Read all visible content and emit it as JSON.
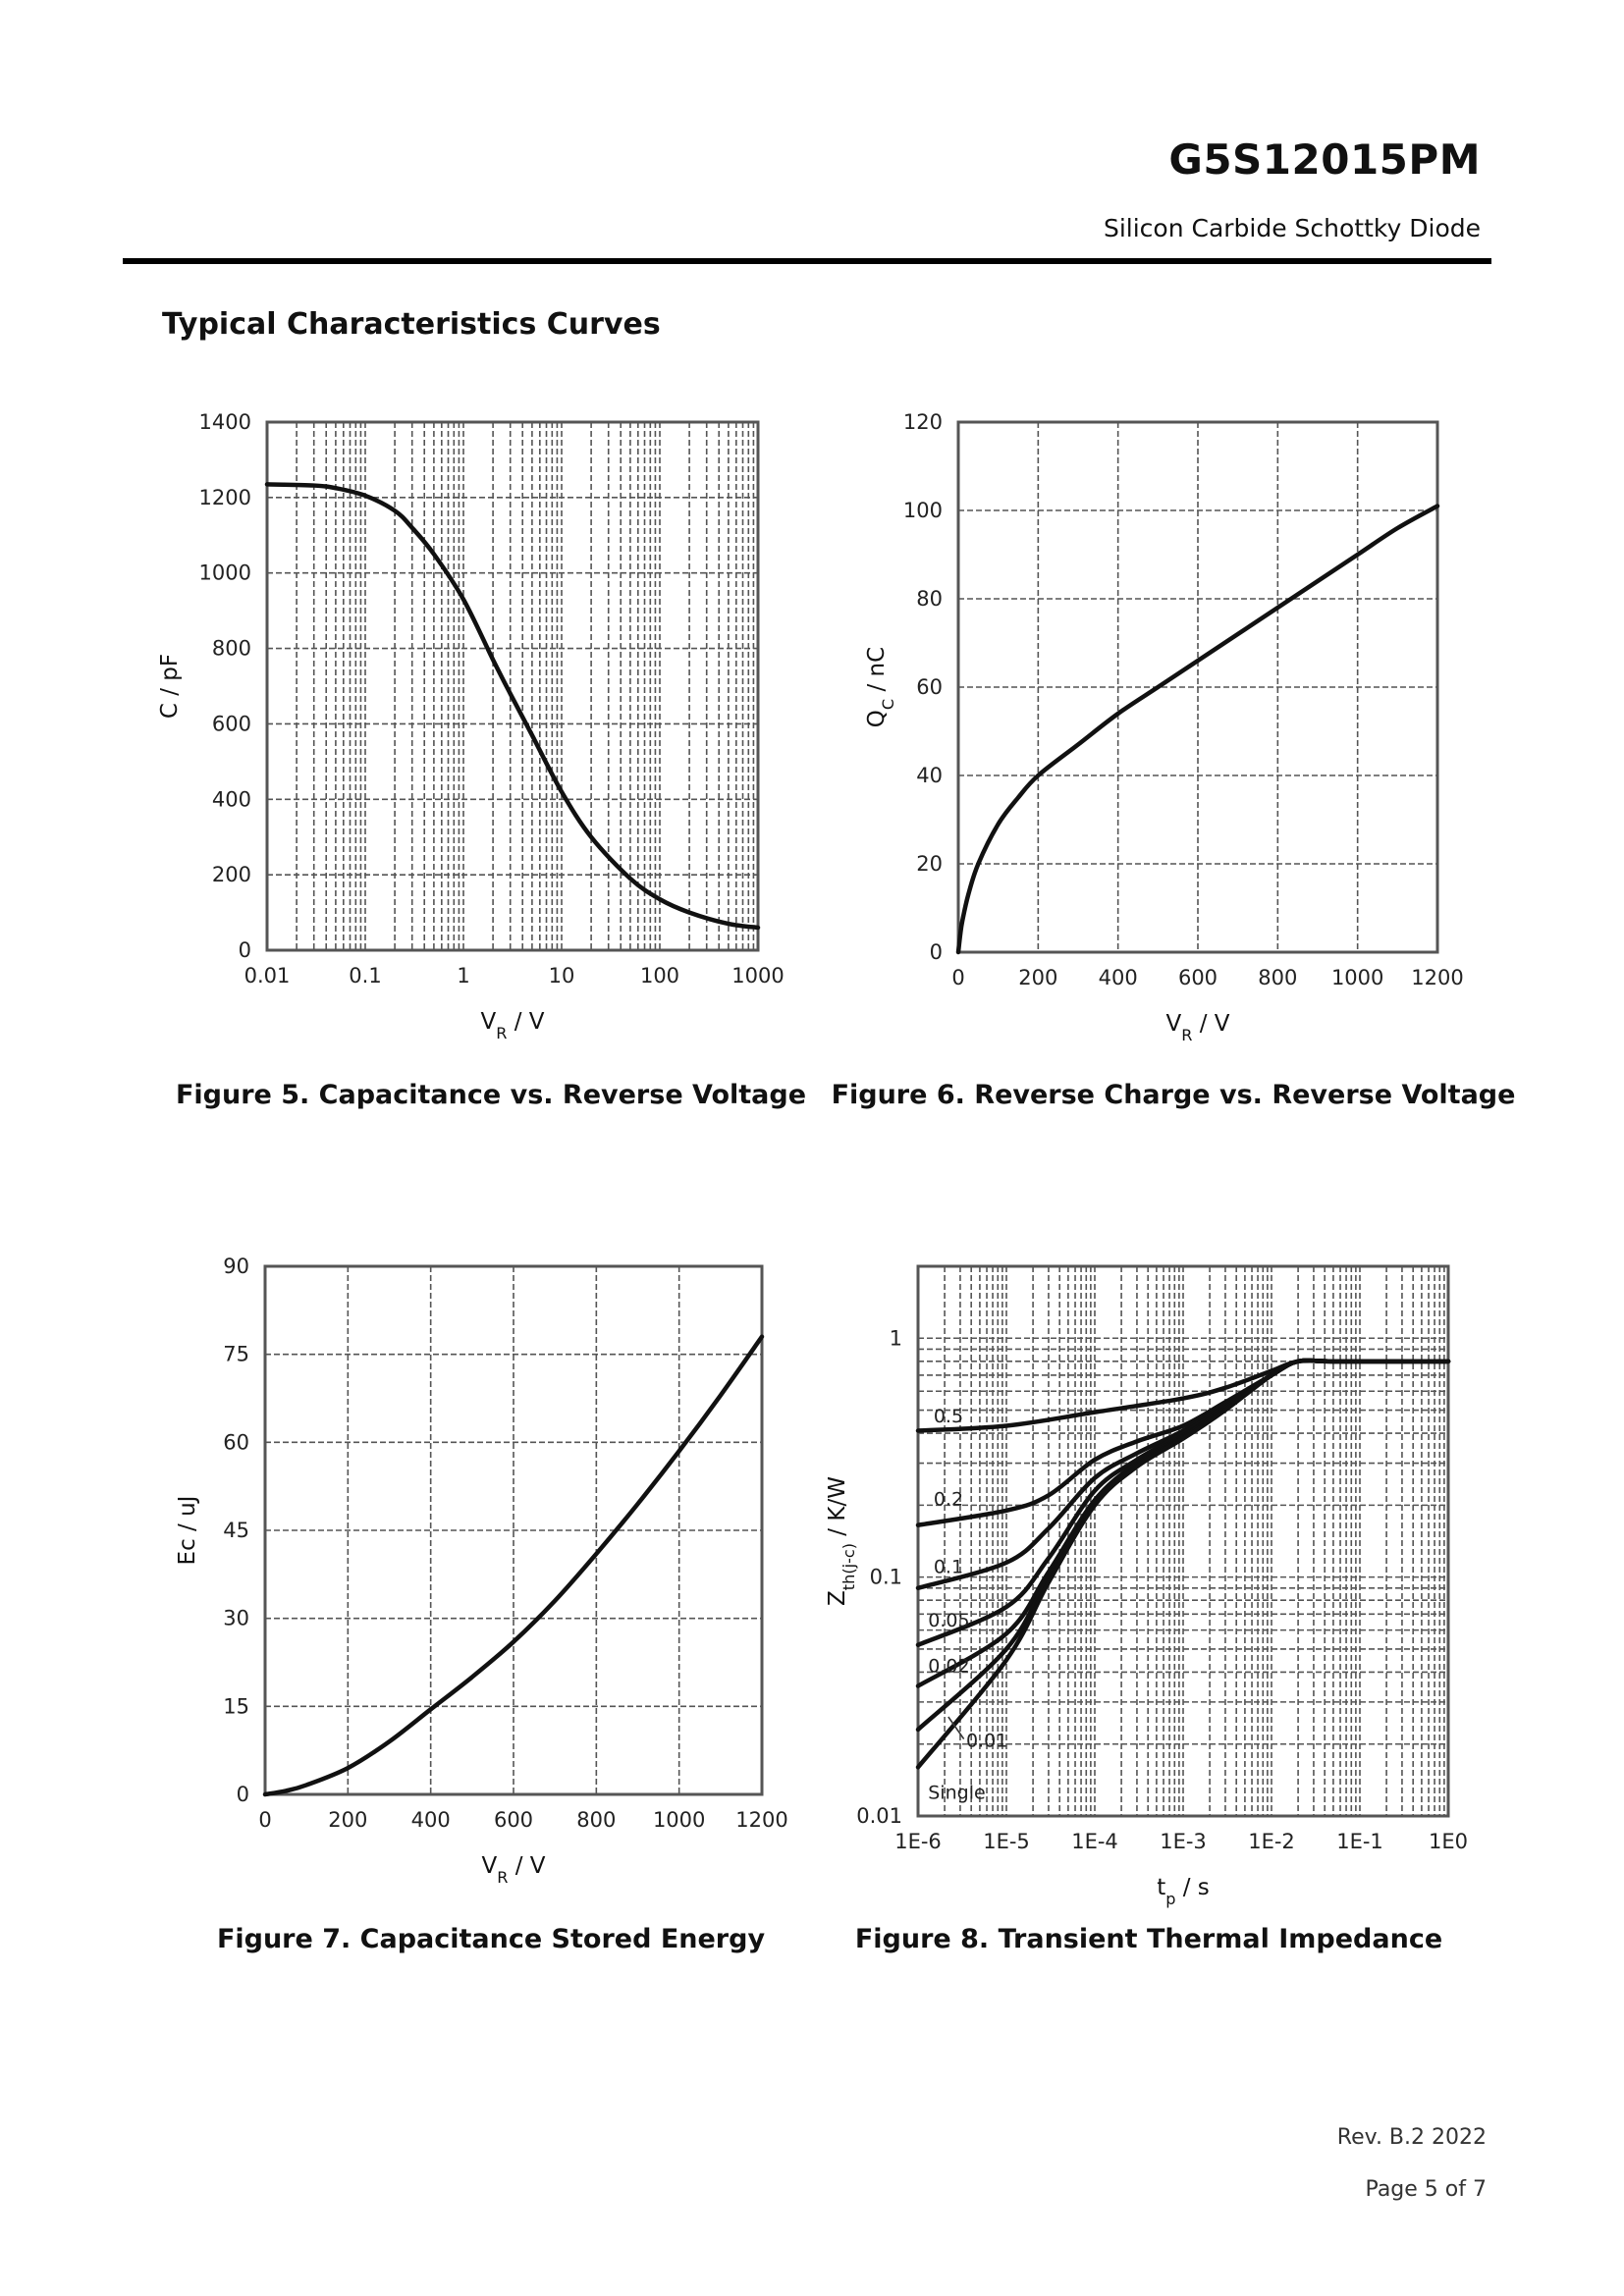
{
  "header": {
    "part_number": "G5S12015PM",
    "description": "Silicon Carbide Schottky Diode"
  },
  "section_title": "Typical Characteristics Curves",
  "footer": {
    "revision": "Rev. B.2    2022",
    "page": "Page  5  of  7"
  },
  "chart_data": [
    {
      "id": "fig5",
      "type": "line",
      "xscale": "log",
      "yscale": "linear",
      "caption": "Figure 5. Capacitance vs. Reverse Voltage",
      "xlabel": "V_R / V",
      "ylabel": "C / pF",
      "xlim": [
        0.01,
        1000
      ],
      "ylim": [
        0,
        1400
      ],
      "xticks": [
        0.01,
        0.1,
        1,
        10,
        100,
        1000
      ],
      "xticklabels": [
        "0.01",
        "0.1",
        "1",
        "10",
        "100",
        "1000"
      ],
      "yticks": [
        0,
        200,
        400,
        600,
        800,
        1000,
        1200,
        1400
      ],
      "yticklabels": [
        "0",
        "200",
        "400",
        "600",
        "800",
        "1000",
        "1200",
        "1400"
      ],
      "series": [
        {
          "name": "C",
          "x": [
            0.01,
            0.03,
            0.05,
            0.1,
            0.2,
            0.3,
            0.5,
            1,
            2,
            3,
            5,
            10,
            20,
            50,
            100,
            200,
            500,
            1000
          ],
          "y": [
            1235,
            1232,
            1225,
            1205,
            1165,
            1120,
            1050,
            930,
            770,
            680,
            570,
            420,
            300,
            190,
            135,
            100,
            70,
            60
          ]
        }
      ]
    },
    {
      "id": "fig6",
      "type": "line",
      "xscale": "linear",
      "yscale": "linear",
      "caption": "Figure 6. Reverse Charge vs. Reverse Voltage",
      "xlabel": "V_R / V",
      "ylabel": "Q_C / nC",
      "xlim": [
        0,
        1200
      ],
      "ylim": [
        0,
        120
      ],
      "xticks": [
        0,
        200,
        400,
        600,
        800,
        1000,
        1200
      ],
      "xticklabels": [
        "0",
        "200",
        "400",
        "600",
        "800",
        "1000",
        "1200"
      ],
      "yticks": [
        0,
        20,
        40,
        60,
        80,
        100,
        120
      ],
      "yticklabels": [
        "0",
        "20",
        "40",
        "60",
        "80",
        "100",
        "120"
      ],
      "series": [
        {
          "name": "Qc",
          "x": [
            0,
            5,
            10,
            25,
            50,
            100,
            150,
            200,
            300,
            400,
            500,
            600,
            700,
            800,
            900,
            1000,
            1100,
            1200
          ],
          "y": [
            0,
            4,
            7,
            13,
            20,
            29,
            35,
            40,
            47,
            54,
            60,
            66,
            72,
            78,
            84,
            90,
            96,
            101
          ]
        }
      ]
    },
    {
      "id": "fig7",
      "type": "line",
      "xscale": "linear",
      "yscale": "linear",
      "caption": "Figure 7. Capacitance Stored Energy",
      "xlabel": "V_R / V",
      "ylabel": "Ec / uJ",
      "xlim": [
        0,
        1200
      ],
      "ylim": [
        0,
        90
      ],
      "xticks": [
        0,
        200,
        400,
        600,
        800,
        1000,
        1200
      ],
      "xticklabels": [
        "0",
        "200",
        "400",
        "600",
        "800",
        "1000",
        "1200"
      ],
      "yticks": [
        0,
        15,
        30,
        45,
        60,
        75,
        90
      ],
      "yticklabels": [
        "0",
        "15",
        "30",
        "45",
        "60",
        "75",
        "90"
      ],
      "series": [
        {
          "name": "Ec",
          "x": [
            0,
            50,
            100,
            200,
            300,
            400,
            500,
            600,
            700,
            800,
            900,
            1000,
            1100,
            1200
          ],
          "y": [
            0,
            0.6,
            1.6,
            4.5,
            9,
            14.5,
            20,
            26,
            33,
            41,
            49.5,
            58.5,
            68,
            78
          ]
        }
      ]
    },
    {
      "id": "fig8",
      "type": "line",
      "xscale": "log",
      "yscale": "log",
      "caption": "Figure 8. Transient Thermal Impedance",
      "xlabel": "t_p / s",
      "ylabel": "Z_th(j-c) / K/W",
      "xlim": [
        1e-06,
        1
      ],
      "ylim": [
        0.01,
        2
      ],
      "xticks": [
        1e-06,
        1e-05,
        0.0001,
        0.001,
        0.01,
        0.1,
        1
      ],
      "xticklabels": [
        "1E-6",
        "1E-5",
        "1E-4",
        "1E-3",
        "1E-2",
        "1E-1",
        "1E0"
      ],
      "yticks": [
        0.01,
        0.1,
        1
      ],
      "yticklabels": [
        "0.01",
        "0.1",
        "1"
      ],
      "series": [
        {
          "name": "0.5",
          "x": [
            1e-06,
            1e-05,
            0.0001,
            0.001,
            0.003,
            0.01,
            0.02,
            0.05,
            0.1,
            1
          ],
          "y": [
            0.41,
            0.43,
            0.49,
            0.56,
            0.62,
            0.73,
            0.8,
            0.8,
            0.8,
            0.8
          ]
        },
        {
          "name": "0.2",
          "x": [
            1e-06,
            1e-05,
            3e-05,
            0.0001,
            0.0003,
            0.001,
            0.003,
            0.01,
            0.02,
            0.05,
            1
          ],
          "y": [
            0.165,
            0.19,
            0.22,
            0.31,
            0.37,
            0.43,
            0.54,
            0.7,
            0.8,
            0.8,
            0.8
          ]
        },
        {
          "name": "0.1",
          "x": [
            1e-06,
            1e-05,
            3e-05,
            0.0001,
            0.0003,
            0.001,
            0.003,
            0.01,
            0.02,
            0.05,
            1
          ],
          "y": [
            0.09,
            0.115,
            0.16,
            0.26,
            0.33,
            0.41,
            0.53,
            0.7,
            0.8,
            0.8,
            0.8
          ]
        },
        {
          "name": "0.05",
          "x": [
            1e-06,
            1e-05,
            3e-05,
            0.0001,
            0.0003,
            0.001,
            0.003,
            0.01,
            0.02,
            0.05,
            1
          ],
          "y": [
            0.052,
            0.075,
            0.12,
            0.23,
            0.31,
            0.4,
            0.52,
            0.7,
            0.8,
            0.8,
            0.8
          ]
        },
        {
          "name": "0.02",
          "x": [
            1e-06,
            1e-05,
            3e-05,
            0.0001,
            0.0003,
            0.001,
            0.003,
            0.01,
            0.02,
            0.05,
            1
          ],
          "y": [
            0.035,
            0.058,
            0.105,
            0.21,
            0.3,
            0.39,
            0.51,
            0.7,
            0.8,
            0.8,
            0.8
          ]
        },
        {
          "name": "0.01",
          "x": [
            1e-06,
            1e-05,
            3e-05,
            0.0001,
            0.0003,
            0.001,
            0.003,
            0.01,
            0.02,
            0.05,
            1
          ],
          "y": [
            0.023,
            0.05,
            0.1,
            0.205,
            0.295,
            0.385,
            0.51,
            0.7,
            0.8,
            0.8,
            0.8
          ]
        },
        {
          "name": "Single",
          "x": [
            1e-06,
            1e-05,
            3e-05,
            0.0001,
            0.0003,
            0.001,
            0.003,
            0.01,
            0.02,
            0.05,
            1
          ],
          "y": [
            0.016,
            0.045,
            0.095,
            0.2,
            0.29,
            0.38,
            0.5,
            0.7,
            0.8,
            0.8,
            0.8
          ]
        }
      ],
      "annotations": [
        "0.5",
        "0.2",
        "0.1",
        "0.05",
        "0.02",
        "0.01",
        "Single"
      ]
    }
  ]
}
